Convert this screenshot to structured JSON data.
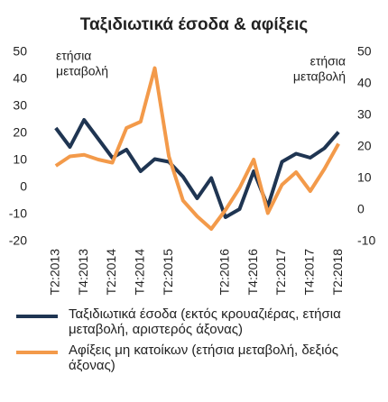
{
  "chart_data": {
    "type": "line",
    "title": "Ταξιδιωτικά έσοδα & αφίξεις",
    "y_label": [
      "ετήσια",
      "μεταβολή"
    ],
    "y2_label": [
      "ετήσια",
      "μεταβολή"
    ],
    "categories": [
      "T2:2013",
      null,
      "T4:2013",
      null,
      "T2:2014",
      null,
      "T4:2014",
      null,
      "T2:2015",
      null,
      null,
      null,
      "T2:2016",
      null,
      "T4:2016",
      null,
      "T2:2017",
      null,
      "T4:2017",
      null,
      "T2:2018"
    ],
    "ylim": [
      -20,
      50
    ],
    "yticks": [
      -20,
      -10,
      0,
      10,
      20,
      30,
      40,
      50
    ],
    "y2lim": [
      -10,
      50
    ],
    "y2ticks": [
      -10,
      0,
      10,
      20,
      30,
      40,
      50
    ],
    "legend": "bottom",
    "series": [
      {
        "name": "Ταξιδιωτικά έσοδα (εκτός κρουαζιέρας, ετήσια μεταβολή, αριστερός άξονας)",
        "color": "#1f3552",
        "values": [
          22,
          15,
          25,
          18,
          11,
          14,
          6,
          10.5,
          9.5,
          4,
          -4,
          3.5,
          -11,
          -8,
          6,
          -7,
          9.5,
          12.5,
          11,
          14.5,
          20.5
        ]
      },
      {
        "name": "Αφίξεις μη κατοίκων (ετήσια μεταβολή, δεξιός άξονας)",
        "color": "#f39a4a",
        "axis": "y2",
        "values": [
          14,
          17,
          17.5,
          16,
          15,
          26,
          28,
          45,
          17,
          3,
          -2,
          -6,
          0,
          7,
          16,
          -1,
          8,
          12,
          6,
          13,
          21
        ]
      }
    ]
  }
}
